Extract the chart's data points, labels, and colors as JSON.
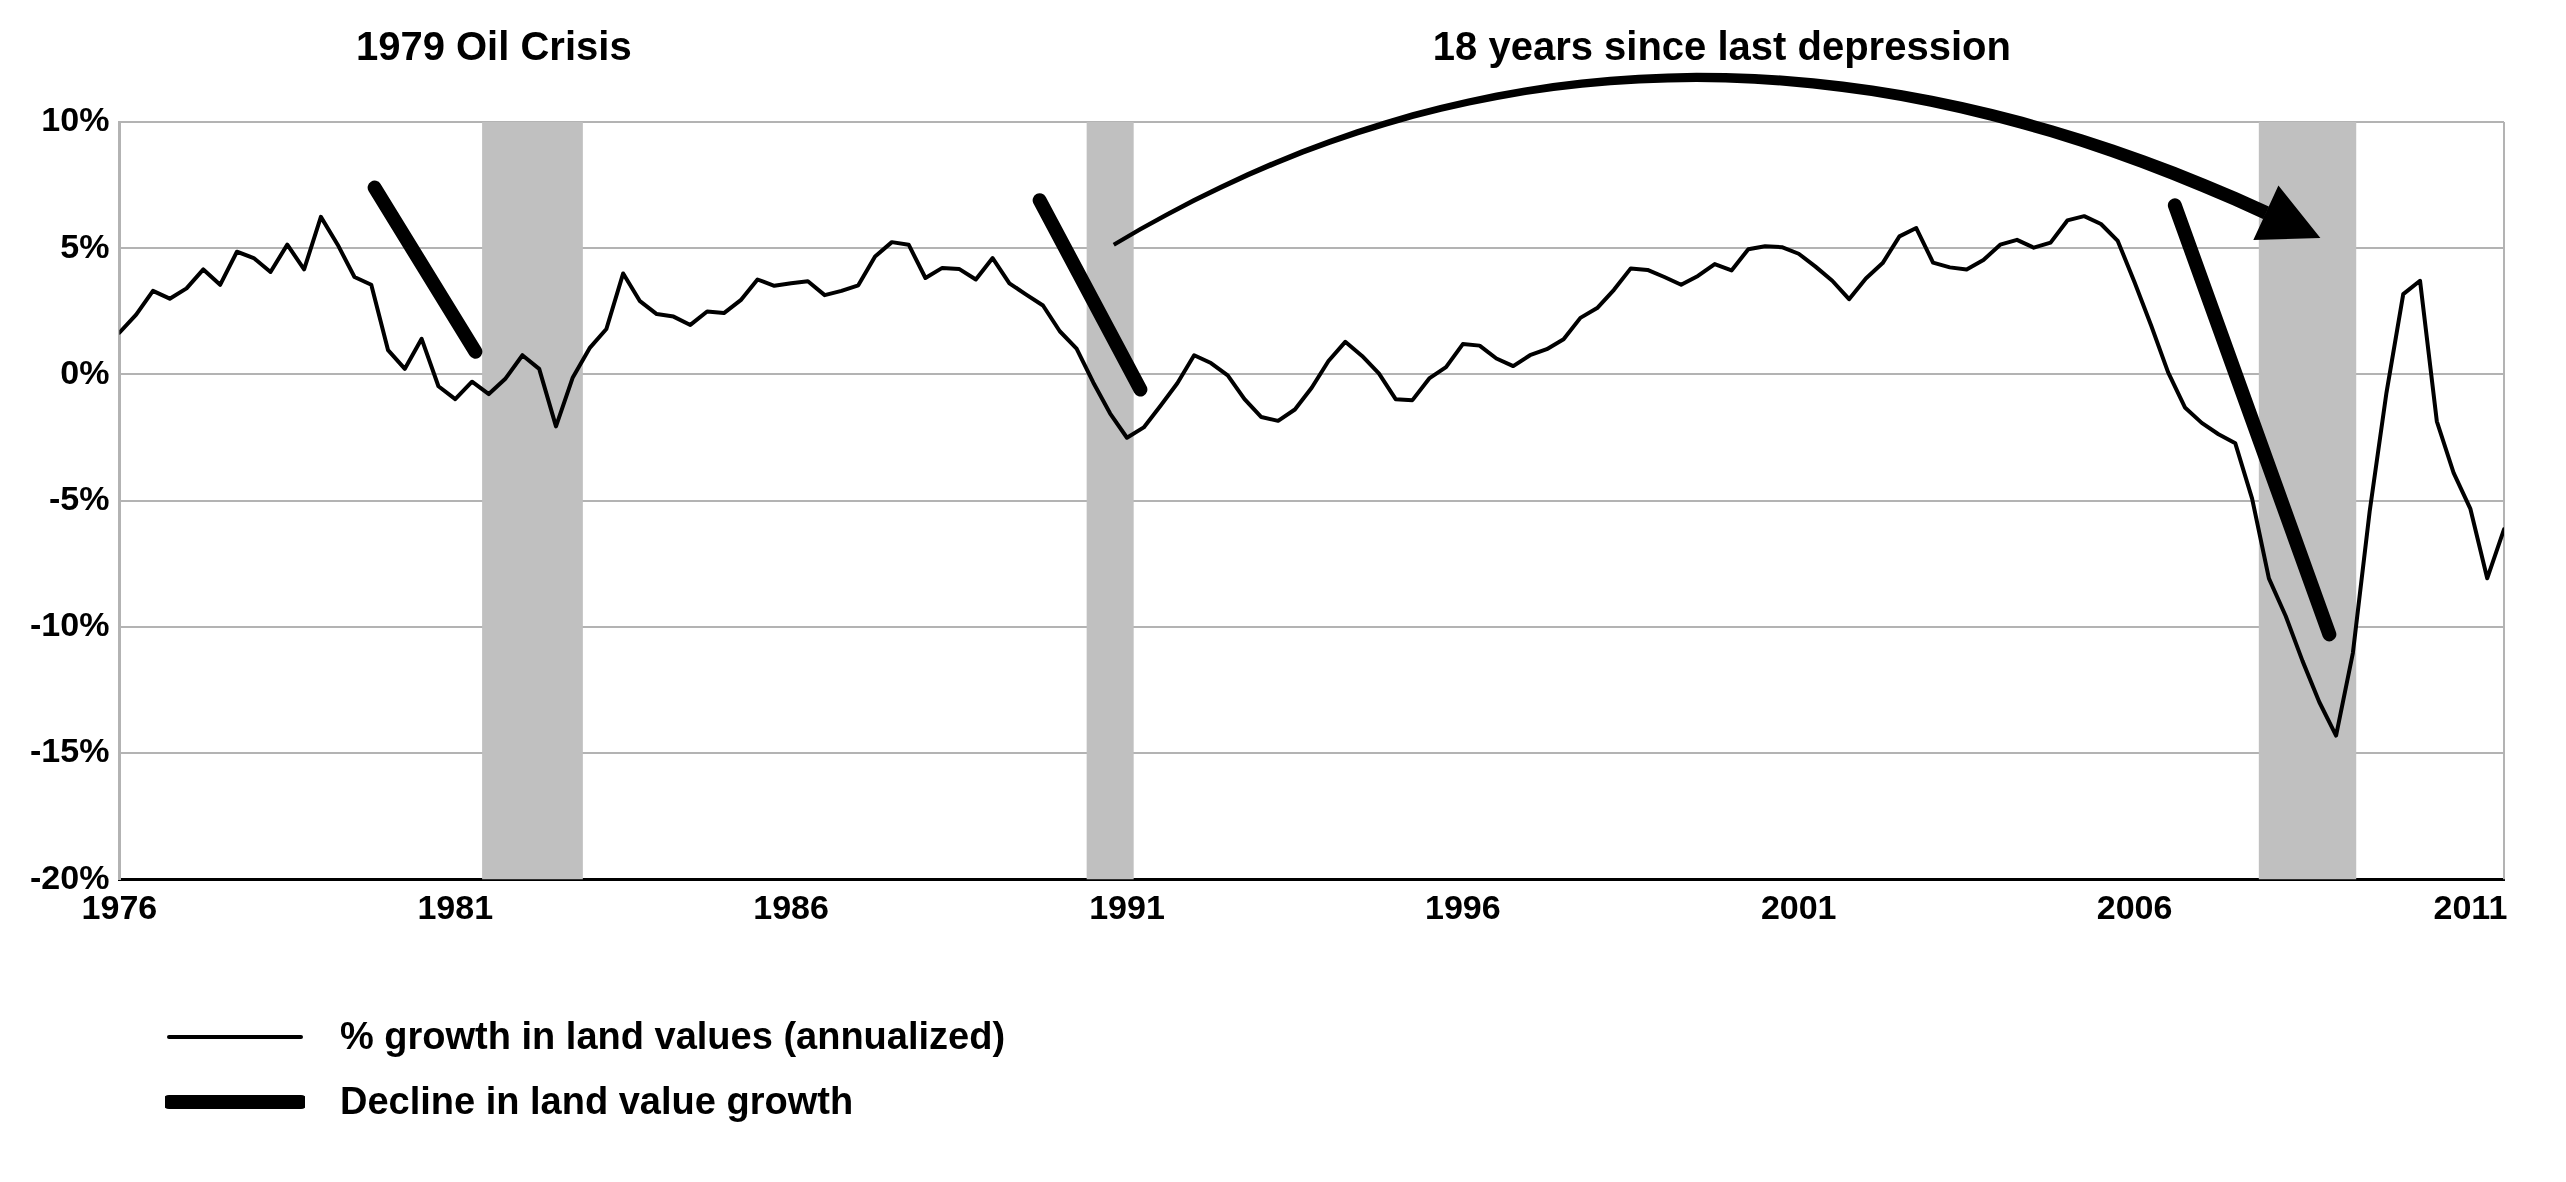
{
  "chart_data": {
    "type": "line",
    "annotations": [
      "1979 Oil Crisis",
      "18 years since last depression"
    ],
    "x": [
      1976,
      1976.25,
      1976.5,
      1976.75,
      1977,
      1977.25,
      1977.5,
      1977.75,
      1978,
      1978.25,
      1978.5,
      1978.75,
      1979,
      1979.25,
      1979.5,
      1979.75,
      1980,
      1980.25,
      1980.5,
      1980.75,
      1981,
      1981.25,
      1981.5,
      1981.75,
      1982,
      1982.25,
      1982.5,
      1982.75,
      1983,
      1983.25,
      1983.5,
      1983.75,
      1984,
      1984.25,
      1984.5,
      1984.75,
      1985,
      1985.25,
      1985.5,
      1985.75,
      1986,
      1986.25,
      1986.5,
      1986.75,
      1987,
      1987.25,
      1987.5,
      1987.75,
      1988,
      1988.25,
      1988.5,
      1988.75,
      1989,
      1989.25,
      1989.5,
      1989.75,
      1990,
      1990.25,
      1990.5,
      1990.75,
      1991,
      1991.25,
      1991.5,
      1991.75,
      1992,
      1992.25,
      1992.5,
      1992.75,
      1993,
      1993.25,
      1993.5,
      1993.75,
      1994,
      1994.25,
      1994.5,
      1994.75,
      1995,
      1995.25,
      1995.5,
      1995.75,
      1996,
      1996.25,
      1996.5,
      1996.75,
      1997,
      1997.25,
      1997.5,
      1997.75,
      1998,
      1998.25,
      1998.5,
      1998.75,
      1999,
      1999.25,
      1999.5,
      1999.75,
      2000,
      2000.25,
      2000.5,
      2000.75,
      2001,
      2001.25,
      2001.5,
      2001.75,
      2002,
      2002.25,
      2002.5,
      2002.75,
      2003,
      2003.25,
      2003.5,
      2003.75,
      2004,
      2004.25,
      2004.5,
      2004.75,
      2005,
      2005.25,
      2005.5,
      2005.75,
      2006,
      2006.25,
      2006.5,
      2006.75,
      2007,
      2007.25,
      2007.5,
      2007.75,
      2008,
      2008.25,
      2008.5,
      2008.75,
      2009,
      2009.25,
      2009.5,
      2009.75,
      2010,
      2010.25,
      2010.5,
      2010.75,
      2011,
      2011.25,
      2011.5
    ],
    "series": [
      {
        "name": "% growth in land values (annualized)",
        "color": "#000000",
        "values": [
          1.65,
          2.37,
          3.31,
          3.0,
          3.41,
          4.16,
          3.55,
          4.86,
          4.61,
          4.06,
          5.14,
          4.16,
          6.24,
          5.14,
          3.86,
          3.55,
          0.96,
          0.22,
          1.41,
          -0.47,
          -0.98,
          -0.29,
          -0.78,
          -0.16,
          0.76,
          0.22,
          -2.06,
          -0.12,
          1.04,
          1.8,
          4.0,
          2.9,
          2.39,
          2.29,
          1.96,
          2.49,
          2.43,
          2.94,
          3.76,
          3.51,
          3.61,
          3.69,
          3.14,
          3.31,
          3.53,
          4.67,
          5.24,
          5.14,
          3.82,
          4.22,
          4.18,
          3.76,
          4.61,
          3.61,
          3.16,
          2.73,
          1.71,
          1.02,
          -0.33,
          -1.55,
          -2.51,
          -2.1,
          -1.24,
          -0.35,
          0.76,
          0.45,
          -0.04,
          -0.98,
          -1.69,
          -1.84,
          -1.39,
          -0.53,
          0.53,
          1.29,
          0.73,
          0.04,
          -0.98,
          -1.02,
          -0.16,
          0.29,
          1.2,
          1.14,
          0.63,
          0.33,
          0.76,
          1.0,
          1.39,
          2.24,
          2.63,
          3.35,
          4.2,
          4.14,
          3.86,
          3.55,
          3.9,
          4.37,
          4.12,
          4.96,
          5.08,
          5.04,
          4.78,
          4.27,
          3.71,
          2.98,
          3.8,
          4.41,
          5.47,
          5.8,
          4.43,
          4.24,
          4.16,
          4.53,
          5.14,
          5.33,
          5.02,
          5.22,
          6.1,
          6.27,
          5.96,
          5.29,
          3.65,
          1.92,
          0.08,
          -1.31,
          -1.92,
          -2.37,
          -2.73,
          -4.92,
          -8.08,
          -9.57,
          -11.35,
          -12.98,
          -14.31,
          -11.04,
          -5.43,
          -0.73,
          3.18,
          3.71,
          -1.86,
          -3.9,
          -5.33,
          -8.08,
          -6.14
        ]
      },
      {
        "name": "Decline in land value growth",
        "color": "#000000",
        "x": [
          1979.8,
          1981.3,
          1985,
          1989.7,
          1991.2,
          2000,
          2006.6,
          2008.9
        ],
        "values": [
          7.4,
          0.9,
          null,
          6.9,
          -0.6,
          null,
          6.7,
          -10.3
        ]
      }
    ],
    "xlim": [
      1976,
      2011.5
    ],
    "xticks": [
      1976,
      1981,
      1986,
      1991,
      1996,
      2001,
      2006,
      2011
    ],
    "ylim": [
      -20,
      10
    ],
    "yticks": [
      {
        "value": -20,
        "label": "-20%"
      },
      {
        "value": -15,
        "label": "-15%"
      },
      {
        "value": -10,
        "label": "-10%"
      },
      {
        "value": -5,
        "label": "-5%"
      },
      {
        "value": 0,
        "label": "0%"
      },
      {
        "value": 5,
        "label": "5%"
      },
      {
        "value": 10,
        "label": "10%"
      }
    ],
    "grid": "y",
    "legend": "bottom left",
    "marker": "none",
    "line_style": "solid",
    "bands": [
      {
        "axis": "x",
        "from": 1981.4,
        "to": 1982.9,
        "color": "#c0c0c0"
      },
      {
        "axis": "x",
        "from": 1990.4,
        "to": 1991.1,
        "color": "#c0c0c0"
      },
      {
        "axis": "x",
        "from": 2007.85,
        "to": 2009.3,
        "color": "#c0c0c0"
      }
    ]
  }
}
